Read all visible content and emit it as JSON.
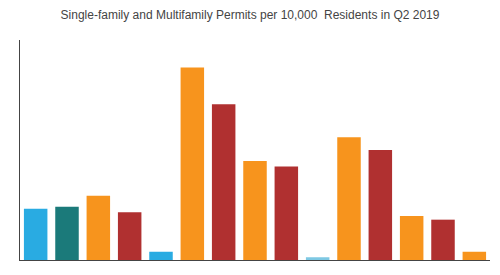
{
  "chart_data": {
    "type": "bar",
    "title": "Single-family and Multifamily Permits per 10,000  Residents in Q2 2019",
    "categories": [
      null,
      null,
      null,
      null,
      null,
      null,
      null,
      null,
      null,
      null,
      null,
      null,
      null,
      null,
      null
    ],
    "values": [
      2.8,
      2.9,
      3.5,
      2.6,
      0.45,
      10.5,
      8.5,
      5.4,
      5.1,
      0.15,
      6.7,
      6.0,
      2.4,
      2.2,
      0.45
    ],
    "colors": [
      "#29ABE2",
      "#1B7A7A",
      "#F7941D",
      "#B03030",
      "#29ABE2",
      "#F7941D",
      "#B03030",
      "#F7941D",
      "#B03030",
      "#7EC8E3",
      "#F7941D",
      "#B03030",
      "#F7941D",
      "#B03030",
      "#F7941D"
    ],
    "ylim": [
      0,
      12
    ],
    "grid": false,
    "tick_labels": false
  }
}
